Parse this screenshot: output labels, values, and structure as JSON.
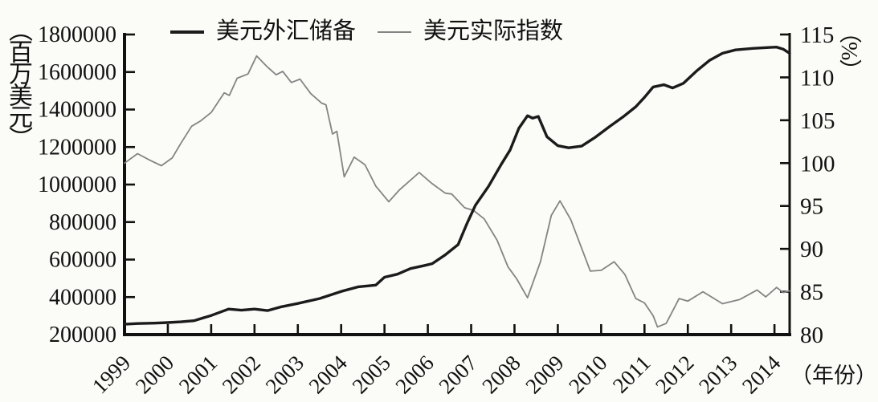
{
  "chart_data": {
    "type": "line",
    "legend_position": "top",
    "grid": false,
    "x_axis": {
      "label": "（年份）",
      "range": [
        1999,
        2014.35
      ],
      "ticks": [
        1999,
        2000,
        2001,
        2002,
        2003,
        2004,
        2005,
        2006,
        2007,
        2008,
        2009,
        2010,
        2011,
        2012,
        2013,
        2014
      ]
    },
    "y_axis_left": {
      "label": "（百万美元）",
      "range": [
        200000,
        1800000
      ],
      "tick_step": 200000,
      "ticks": [
        200000,
        400000,
        600000,
        800000,
        1000000,
        1200000,
        1400000,
        1600000,
        1800000
      ]
    },
    "y_axis_right": {
      "label": "（%）",
      "range": [
        80,
        115
      ],
      "tick_step": 5,
      "ticks": [
        80,
        85,
        90,
        95,
        100,
        105,
        110,
        115
      ]
    },
    "series": [
      {
        "name": "美元外汇储备",
        "axis": "left",
        "color": "#1b1b1b",
        "line_width": 3.4,
        "points": [
          [
            1999.0,
            255000
          ],
          [
            1999.3,
            259000
          ],
          [
            1999.7,
            261000
          ],
          [
            2000.0,
            264000
          ],
          [
            2000.3,
            268000
          ],
          [
            2000.6,
            274000
          ],
          [
            2001.0,
            302000
          ],
          [
            2001.4,
            336000
          ],
          [
            2001.7,
            330000
          ],
          [
            2002.0,
            336000
          ],
          [
            2002.3,
            328000
          ],
          [
            2002.6,
            347000
          ],
          [
            2003.0,
            366000
          ],
          [
            2003.5,
            392000
          ],
          [
            2004.0,
            430000
          ],
          [
            2004.4,
            455000
          ],
          [
            2004.8,
            464000
          ],
          [
            2005.0,
            506000
          ],
          [
            2005.3,
            522000
          ],
          [
            2005.6,
            552000
          ],
          [
            2005.9,
            567000
          ],
          [
            2006.1,
            578000
          ],
          [
            2006.4,
            625000
          ],
          [
            2006.7,
            680000
          ],
          [
            2006.9,
            790000
          ],
          [
            2007.1,
            890000
          ],
          [
            2007.4,
            990000
          ],
          [
            2007.7,
            1110000
          ],
          [
            2007.9,
            1185000
          ],
          [
            2008.1,
            1300000
          ],
          [
            2008.3,
            1367000
          ],
          [
            2008.42,
            1354000
          ],
          [
            2008.55,
            1363000
          ],
          [
            2008.75,
            1255000
          ],
          [
            2009.0,
            1207000
          ],
          [
            2009.25,
            1196000
          ],
          [
            2009.55,
            1205000
          ],
          [
            2009.85,
            1250000
          ],
          [
            2010.2,
            1310000
          ],
          [
            2010.5,
            1360000
          ],
          [
            2010.8,
            1415000
          ],
          [
            2011.0,
            1465000
          ],
          [
            2011.2,
            1520000
          ],
          [
            2011.45,
            1532000
          ],
          [
            2011.65,
            1515000
          ],
          [
            2011.9,
            1540000
          ],
          [
            2012.2,
            1605000
          ],
          [
            2012.5,
            1662000
          ],
          [
            2012.8,
            1700000
          ],
          [
            2013.1,
            1718000
          ],
          [
            2013.5,
            1726000
          ],
          [
            2013.9,
            1731000
          ],
          [
            2014.05,
            1733000
          ],
          [
            2014.2,
            1722000
          ],
          [
            2014.35,
            1700000
          ]
        ]
      },
      {
        "name": "美元实际指数",
        "axis": "right",
        "color": "#848484",
        "line_width": 1.8,
        "points": [
          [
            1999.0,
            100.0
          ],
          [
            1999.3,
            101.1
          ],
          [
            1999.6,
            100.3
          ],
          [
            1999.85,
            99.7
          ],
          [
            2000.1,
            100.6
          ],
          [
            2000.3,
            102.3
          ],
          [
            2000.55,
            104.3
          ],
          [
            2000.75,
            104.9
          ],
          [
            2001.0,
            105.9
          ],
          [
            2001.3,
            108.2
          ],
          [
            2001.42,
            107.9
          ],
          [
            2001.6,
            109.9
          ],
          [
            2001.85,
            110.4
          ],
          [
            2002.05,
            112.5
          ],
          [
            2002.3,
            111.2
          ],
          [
            2002.5,
            110.3
          ],
          [
            2002.65,
            110.7
          ],
          [
            2002.85,
            109.4
          ],
          [
            2003.05,
            109.8
          ],
          [
            2003.3,
            108.1
          ],
          [
            2003.55,
            107.0
          ],
          [
            2003.65,
            106.8
          ],
          [
            2003.8,
            103.4
          ],
          [
            2003.9,
            103.7
          ],
          [
            2004.07,
            98.4
          ],
          [
            2004.3,
            100.7
          ],
          [
            2004.55,
            99.8
          ],
          [
            2004.8,
            97.3
          ],
          [
            2005.1,
            95.5
          ],
          [
            2005.35,
            96.9
          ],
          [
            2005.8,
            98.9
          ],
          [
            2006.1,
            97.6
          ],
          [
            2006.4,
            96.5
          ],
          [
            2006.55,
            96.4
          ],
          [
            2006.85,
            94.8
          ],
          [
            2007.05,
            94.5
          ],
          [
            2007.3,
            93.5
          ],
          [
            2007.6,
            91.0
          ],
          [
            2007.85,
            87.9
          ],
          [
            2008.05,
            86.5
          ],
          [
            2008.3,
            84.3
          ],
          [
            2008.6,
            88.5
          ],
          [
            2008.85,
            93.9
          ],
          [
            2009.05,
            95.6
          ],
          [
            2009.3,
            93.4
          ],
          [
            2009.75,
            87.4
          ],
          [
            2010.0,
            87.5
          ],
          [
            2010.3,
            88.5
          ],
          [
            2010.55,
            87.0
          ],
          [
            2010.8,
            84.2
          ],
          [
            2011.0,
            83.7
          ],
          [
            2011.2,
            82.2
          ],
          [
            2011.3,
            80.9
          ],
          [
            2011.5,
            81.3
          ],
          [
            2011.8,
            84.2
          ],
          [
            2012.0,
            83.9
          ],
          [
            2012.35,
            85.0
          ],
          [
            2012.8,
            83.6
          ],
          [
            2013.2,
            84.1
          ],
          [
            2013.6,
            85.2
          ],
          [
            2013.8,
            84.4
          ],
          [
            2014.05,
            85.5
          ],
          [
            2014.2,
            84.9
          ],
          [
            2014.35,
            85.1
          ]
        ]
      }
    ]
  }
}
